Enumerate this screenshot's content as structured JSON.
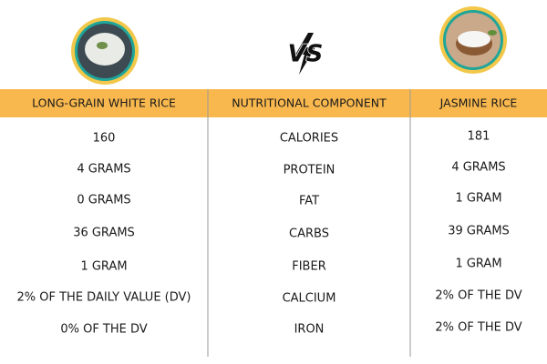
{
  "table": {
    "headers": [
      "LONG-GRAIN WHITE RICE",
      "NUTRITIONAL COMPONENT",
      "JASMINE RICE"
    ],
    "rows": [
      [
        "160",
        "CALORIES",
        "181"
      ],
      [
        "4 GRAMS",
        "PROTEIN",
        "4 GRAMS"
      ],
      [
        "0 GRAMS",
        "FAT",
        "1 GRAM"
      ],
      [
        "36 GRAMS",
        "CARBS",
        "39 GRAMS"
      ],
      [
        "1 GRAM",
        "FIBER",
        "1 GRAM"
      ],
      [
        "2% OF THE DAILY VALUE (DV)",
        "CALCIUM",
        "2% OF THE DV"
      ],
      [
        "0% OF THE DV",
        "IRON",
        "2% OF THE DV"
      ]
    ]
  }
}
